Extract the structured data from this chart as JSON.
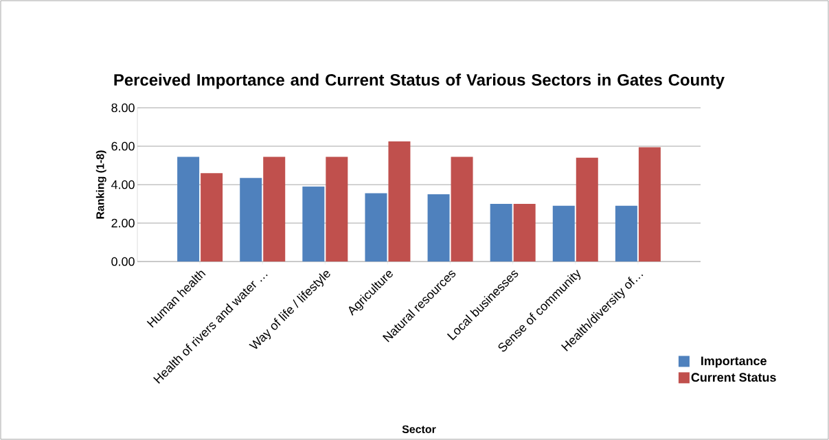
{
  "chart_data": {
    "type": "bar",
    "title": "Perceived Importance and Current Status of Various Sectors in Gates County",
    "xlabel": "Sector",
    "ylabel": "Ranking (1-8)",
    "categories": [
      "Human health",
      "Health of rivers and water …",
      "Way of life / lifestyle",
      "Agriculture",
      "Natural resources",
      "Local businesses",
      "Sense of community",
      "Health/diversity of…"
    ],
    "series": [
      {
        "name": "Importance",
        "color": "#4f81bd",
        "values": [
          5.45,
          4.35,
          3.9,
          3.55,
          3.5,
          3.0,
          2.9,
          2.9
        ]
      },
      {
        "name": "Current Status",
        "color": "#c0504d",
        "values": [
          4.6,
          5.45,
          5.45,
          6.25,
          5.45,
          3.0,
          5.4,
          5.95
        ]
      }
    ],
    "ylim": [
      0,
      8
    ],
    "yticks": [
      {
        "value": 0,
        "label": "0.00"
      },
      {
        "value": 2,
        "label": "2.00"
      },
      {
        "value": 4,
        "label": "4.00"
      },
      {
        "value": 6,
        "label": "6.00"
      },
      {
        "value": 8,
        "label": "8.00"
      }
    ],
    "grid": "y",
    "legend": "bottom right"
  }
}
